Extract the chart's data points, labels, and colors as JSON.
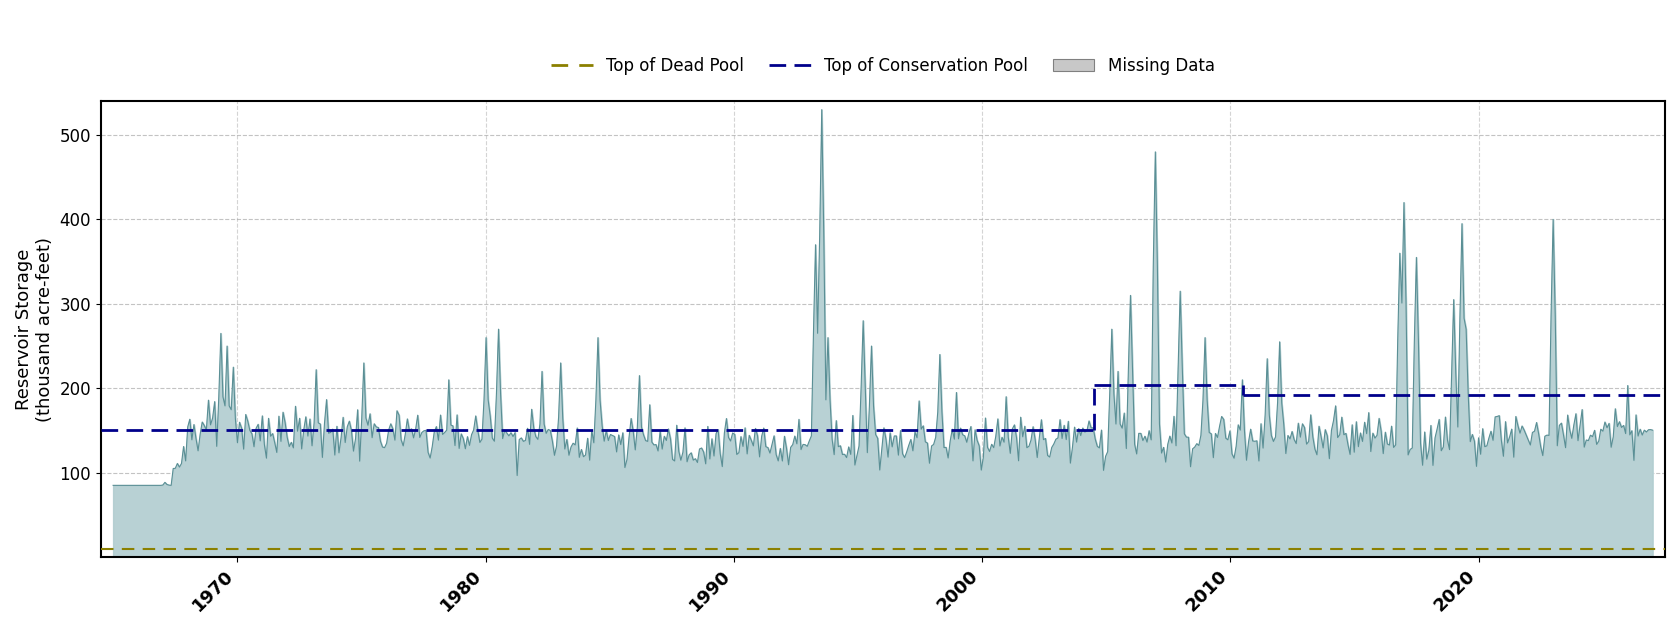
{
  "title": "",
  "ylabel": "Reservoir Storage\n(thousand acre-feet)",
  "xlim_start": 1964.5,
  "xlim_end": 2027.5,
  "ylim": [
    0,
    540
  ],
  "yticks": [
    100,
    200,
    300,
    400,
    500
  ],
  "top_dead_pool": 10,
  "conservation_pool_pre_start": 1964.5,
  "conservation_pool_pre_end": 2004.5,
  "conservation_pool_pre_value": 150,
  "conservation_pool_1_start": 2004.5,
  "conservation_pool_1_end": 2010.5,
  "conservation_pool_1_value": 204,
  "conservation_pool_2_start": 2010.5,
  "conservation_pool_2_end": 2027.5,
  "conservation_pool_2_value": 192,
  "fill_color": "#b2cdd0",
  "line_color": "#5a8f95",
  "dead_pool_color": "#8B8000",
  "conservation_pool_color": "#00008B",
  "missing_data_color": "#c8c8c8",
  "background_fill_color": "#daeaec",
  "xticks": [
    1970,
    1980,
    1990,
    2000,
    2010,
    2020
  ],
  "xlabel_rotation": 45
}
